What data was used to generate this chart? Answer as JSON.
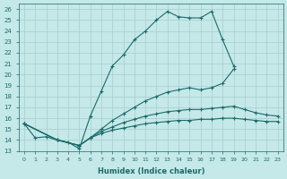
{
  "xlabel": "Humidex (Indice chaleur)",
  "xlim": [
    -0.5,
    23.5
  ],
  "ylim": [
    13,
    26.5
  ],
  "xticks": [
    0,
    1,
    2,
    3,
    4,
    5,
    6,
    7,
    8,
    9,
    10,
    11,
    12,
    13,
    14,
    15,
    16,
    17,
    18,
    19,
    20,
    21,
    22,
    23
  ],
  "yticks": [
    13,
    14,
    15,
    16,
    17,
    18,
    19,
    20,
    21,
    22,
    23,
    24,
    25,
    26
  ],
  "bg_color": "#c5e8e8",
  "line_color": "#1a6b6b",
  "grid_color": "#a8cece",
  "curves": [
    {
      "x": [
        0,
        1,
        2,
        3,
        4,
        5,
        6,
        7,
        8,
        9,
        10,
        11,
        12,
        13,
        14,
        15,
        16,
        17,
        18,
        19
      ],
      "y": [
        15.5,
        14.2,
        14.3,
        14.0,
        13.8,
        13.2,
        16.2,
        18.5,
        20.8,
        21.8,
        23.2,
        24.0,
        25.0,
        25.8,
        25.3,
        25.2,
        25.2,
        25.8,
        23.2,
        20.8
      ]
    },
    {
      "x": [
        0,
        3,
        5,
        6,
        7,
        8,
        9,
        10,
        11,
        12,
        13,
        14,
        15,
        16,
        17,
        18,
        19,
        20,
        21,
        22,
        23
      ],
      "y": [
        15.5,
        14.0,
        13.5,
        14.2,
        15.0,
        15.8,
        16.4,
        17.0,
        17.6,
        18.0,
        18.4,
        18.6,
        18.8,
        18.6,
        18.8,
        19.2,
        20.5,
        null,
        null,
        null,
        null
      ]
    },
    {
      "x": [
        0,
        3,
        5,
        6,
        7,
        8,
        9,
        10,
        11,
        12,
        13,
        14,
        15,
        16,
        17,
        18,
        19,
        20,
        21,
        22,
        23
      ],
      "y": [
        15.5,
        14.0,
        13.5,
        14.2,
        14.8,
        15.2,
        15.6,
        15.9,
        16.2,
        16.4,
        16.6,
        16.7,
        16.8,
        16.8,
        16.9,
        17.0,
        17.1,
        16.8,
        16.5,
        16.3,
        16.2
      ]
    },
    {
      "x": [
        0,
        3,
        5,
        6,
        7,
        8,
        9,
        10,
        11,
        12,
        13,
        14,
        15,
        16,
        17,
        18,
        19,
        20,
        21,
        22,
        23
      ],
      "y": [
        15.5,
        14.0,
        13.5,
        14.2,
        14.6,
        14.9,
        15.1,
        15.3,
        15.5,
        15.6,
        15.7,
        15.8,
        15.8,
        15.9,
        15.9,
        16.0,
        16.0,
        15.9,
        15.8,
        15.7,
        15.7
      ]
    }
  ]
}
